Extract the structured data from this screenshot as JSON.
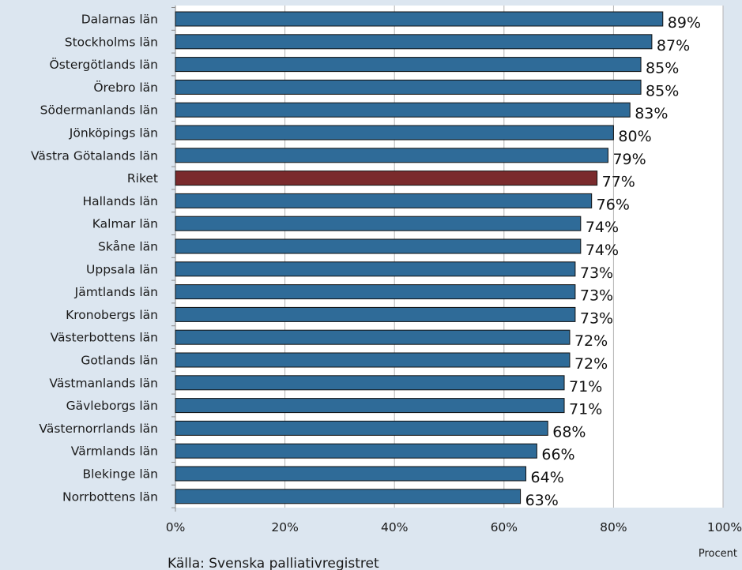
{
  "chart_data": {
    "type": "bar",
    "orientation": "horizontal",
    "categories": [
      "Dalarnas län",
      "Stockholms län",
      "Östergötlands län",
      "Örebro län",
      "Södermanlands län",
      "Jönköpings län",
      "Västra Götalands län",
      "Riket",
      "Hallands län",
      "Kalmar län",
      "Skåne län",
      "Uppsala län",
      "Jämtlands län",
      "Kronobergs län",
      "Västerbottens län",
      "Gotlands län",
      "Västmanlands län",
      "Gävleborgs län",
      "Västernorrlands län",
      "Värmlands län",
      "Blekinge län",
      "Norrbottens län"
    ],
    "values": [
      89,
      87,
      85,
      85,
      83,
      80,
      79,
      77,
      76,
      74,
      74,
      73,
      73,
      73,
      72,
      72,
      71,
      71,
      68,
      66,
      64,
      63
    ],
    "value_labels": [
      "89%",
      "87%",
      "85%",
      "85%",
      "83%",
      "80%",
      "79%",
      "77%",
      "76%",
      "74%",
      "74%",
      "73%",
      "73%",
      "73%",
      "72%",
      "72%",
      "71%",
      "71%",
      "68%",
      "66%",
      "64%",
      "63%"
    ],
    "highlight_category": "Riket",
    "xlim": [
      0,
      100
    ],
    "x_ticks": [
      "0%",
      "20%",
      "40%",
      "60%",
      "80%",
      "100%"
    ],
    "xlabel": "Procent",
    "source": "Källa: Svenska palliativregistret",
    "grid": "vertical",
    "colors": {
      "bar": "#2f6b98",
      "highlight": "#7a2a2c",
      "bar_edge": "#111111",
      "plot_bg": "#ffffff",
      "page_bg": "#dce6f0",
      "grid": "#b3b3b3"
    }
  }
}
